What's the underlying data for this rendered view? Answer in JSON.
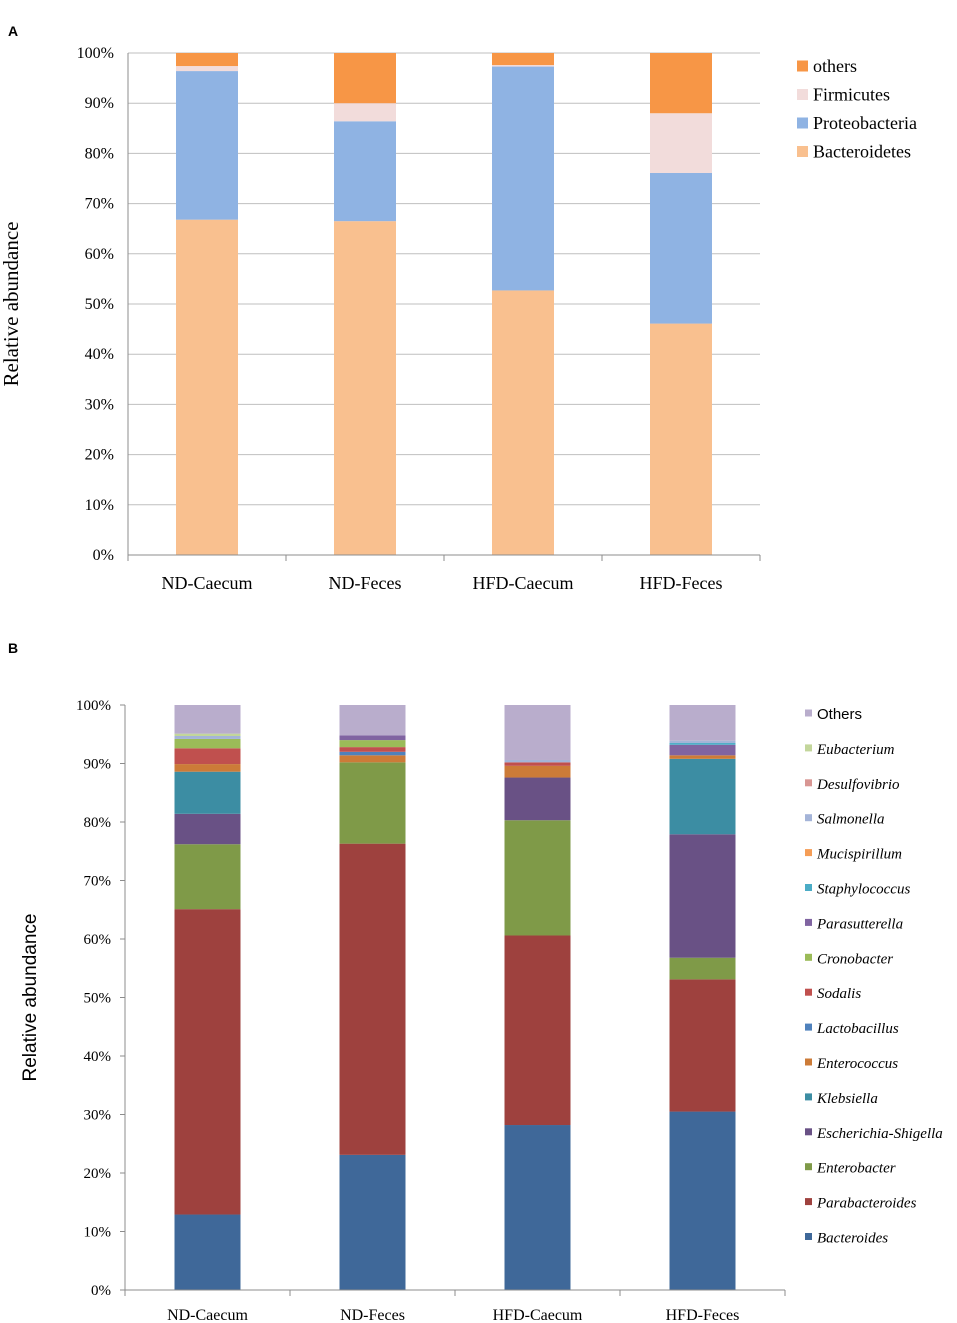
{
  "chart_data": [
    {
      "panel": "A",
      "type": "bar",
      "stacked": true,
      "categories": [
        "ND-Caecum",
        "ND-Feces",
        "HFD-Caecum",
        "HFD-Feces"
      ],
      "ylabel": "Relative abundance",
      "ylim": [
        0,
        100
      ],
      "yticks": [
        "0%",
        "10%",
        "20%",
        "30%",
        "40%",
        "50%",
        "60%",
        "70%",
        "80%",
        "90%",
        "100%"
      ],
      "grid": true,
      "legend_position": "top-right",
      "legend_order": [
        "others",
        "Firmicutes",
        "Proteobacteria",
        "Bacteroidetes"
      ],
      "series": [
        {
          "name": "Bacteroidetes",
          "color": "#F9C08F",
          "values": [
            66.8,
            66.5,
            52.7,
            46.1
          ]
        },
        {
          "name": "Proteobacteria",
          "color": "#8FB3E3",
          "values": [
            29.6,
            19.9,
            44.6,
            30.0
          ]
        },
        {
          "name": "Firmicutes",
          "color": "#F2DCDB",
          "values": [
            1.0,
            3.6,
            0.3,
            11.9
          ]
        },
        {
          "name": "others",
          "color": "#F79646",
          "values": [
            2.6,
            10.0,
            2.4,
            12.0
          ]
        }
      ]
    },
    {
      "panel": "B",
      "type": "bar",
      "stacked": true,
      "categories": [
        "ND-Caecum",
        "ND-Feces",
        "HFD-Caecum",
        "HFD-Feces"
      ],
      "ylabel": "Relative abundance",
      "ylim": [
        0,
        100
      ],
      "yticks": [
        "0%",
        "10%",
        "20%",
        "30%",
        "40%",
        "50%",
        "60%",
        "70%",
        "80%",
        "90%",
        "100%"
      ],
      "grid": false,
      "legend_position": "right",
      "legend_order": [
        "Others",
        "Eubacterium",
        "Desulfovibrio",
        "Salmonella",
        "Mucispirillum",
        "Staphylococcus",
        "Parasutterella",
        "Cronobacter",
        "Sodalis",
        "Lactobacillus",
        "Enterococcus",
        "Klebsiella",
        "Escherichia-Shigella",
        "Enterobacter",
        "Parabacteroides",
        "Bacteroides"
      ],
      "series": [
        {
          "name": "Bacteroides",
          "color": "#3F6899",
          "values": [
            12.9,
            23.1,
            28.2,
            30.5
          ]
        },
        {
          "name": "Parabacteroides",
          "color": "#9E413E",
          "values": [
            52.2,
            53.2,
            32.4,
            22.6
          ]
        },
        {
          "name": "Enterobacter",
          "color": "#7F9A48",
          "values": [
            11.1,
            13.9,
            19.7,
            3.7
          ]
        },
        {
          "name": "Escherichia-Shigella",
          "color": "#695185",
          "values": [
            5.2,
            0.0,
            7.3,
            21.1
          ]
        },
        {
          "name": "Klebsiella",
          "color": "#3C8DA3",
          "values": [
            7.2,
            0.0,
            0.0,
            12.9
          ]
        },
        {
          "name": "Enterococcus",
          "color": "#CC7B38",
          "values": [
            1.3,
            1.2,
            2.0,
            0.6
          ]
        },
        {
          "name": "Lactobacillus",
          "color": "#4F81BC",
          "values": [
            0.0,
            0.6,
            0.0,
            0.0
          ]
        },
        {
          "name": "Sodalis",
          "color": "#C0504E",
          "values": [
            2.7,
            0.8,
            0.6,
            0.0
          ]
        },
        {
          "name": "Cronobacter",
          "color": "#9BBB58",
          "values": [
            1.6,
            1.2,
            0.0,
            0.0
          ]
        },
        {
          "name": "Parasutterella",
          "color": "#8064A1",
          "values": [
            0.0,
            0.8,
            0.0,
            1.8
          ]
        },
        {
          "name": "Staphylococcus",
          "color": "#4BACC6",
          "values": [
            0.0,
            0.0,
            0.0,
            0.3
          ]
        },
        {
          "name": "Mucispirillum",
          "color": "#F59D56",
          "values": [
            0.0,
            0.0,
            0.0,
            0.0
          ]
        },
        {
          "name": "Salmonella",
          "color": "#A4B4D8",
          "values": [
            0.5,
            0.0,
            0.4,
            0.4
          ]
        },
        {
          "name": "Desulfovibrio",
          "color": "#D89693",
          "values": [
            0.0,
            0.0,
            0.0,
            0.0
          ]
        },
        {
          "name": "Eubacterium",
          "color": "#C3D69B",
          "values": [
            0.4,
            0.0,
            0.0,
            0.0
          ]
        },
        {
          "name": "Others",
          "color": "#B9ADCC",
          "values": [
            4.9,
            5.2,
            9.4,
            6.1
          ]
        }
      ]
    }
  ]
}
